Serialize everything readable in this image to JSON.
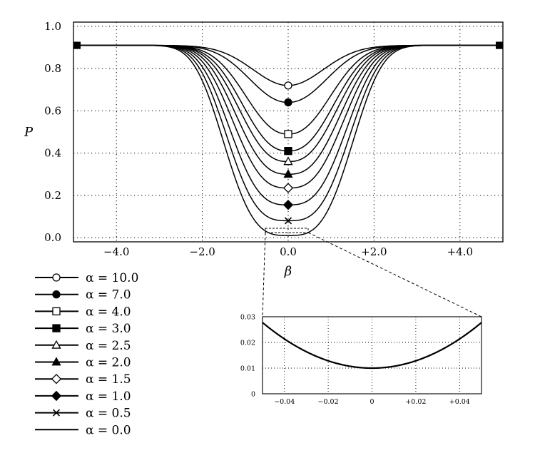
{
  "chart_data": [
    {
      "type": "line",
      "xlabel": "β",
      "ylabel": "P",
      "xlim": [
        -5.0,
        5.0
      ],
      "ylim": [
        -0.02,
        1.02
      ],
      "x_ticks": [
        -4.0,
        -2.0,
        0.0,
        2.0,
        4.0
      ],
      "x_tick_labels": [
        "−4.0",
        "−2.0",
        "0.0",
        "+2.0",
        "+4.0"
      ],
      "y_ticks": [
        0.0,
        0.2,
        0.4,
        0.6,
        0.8,
        1.0
      ],
      "y_tick_labels": [
        "0.0",
        "0.2",
        "0.4",
        "0.6",
        "0.8",
        "1.0"
      ],
      "grid": true,
      "legend_position": "bottom-left, outside the plot",
      "series": [
        {
          "name": "α = 10.0",
          "marker": "circle-open",
          "min_at_zero": 0.72
        },
        {
          "name": "α = 7.0",
          "marker": "circle-filled",
          "min_at_zero": 0.64
        },
        {
          "name": "α = 4.0",
          "marker": "square-open",
          "min_at_zero": 0.49
        },
        {
          "name": "α = 3.0",
          "marker": "square-filled",
          "min_at_zero": 0.41
        },
        {
          "name": "α = 2.5",
          "marker": "triangle-open",
          "min_at_zero": 0.36
        },
        {
          "name": "α = 2.0",
          "marker": "triangle-filled",
          "min_at_zero": 0.3
        },
        {
          "name": "α = 1.5",
          "marker": "diamond-open",
          "min_at_zero": 0.235
        },
        {
          "name": "α = 1.0",
          "marker": "diamond-filled",
          "min_at_zero": 0.155
        },
        {
          "name": "α = 0.5",
          "marker": "x-cross",
          "min_at_zero": 0.08
        },
        {
          "name": "α = 0.0",
          "marker": "none",
          "min_at_zero": 0.01
        }
      ],
      "curve_value_at_edges": 0.91
    },
    {
      "type": "line",
      "title": "",
      "xlim": [
        -0.05,
        0.05
      ],
      "ylim": [
        0,
        0.03
      ],
      "x_ticks": [
        -0.04,
        -0.02,
        0,
        0.02,
        0.04
      ],
      "x_tick_labels": [
        "−0.04",
        "−0.02",
        "0",
        "+0.02",
        "+0.04"
      ],
      "y_ticks": [
        0,
        0.01,
        0.02,
        0.03
      ],
      "y_tick_labels": [
        "0",
        "0.01",
        "0.02",
        "0.03"
      ],
      "grid": true,
      "series": [
        {
          "x": [
            -0.05,
            -0.04,
            -0.03,
            -0.02,
            -0.01,
            0,
            0.01,
            0.02,
            0.03,
            0.04,
            0.05
          ],
          "y": [
            0.0278,
            0.0219,
            0.017,
            0.0132,
            0.0108,
            0.01,
            0.0108,
            0.0132,
            0.017,
            0.0219,
            0.0278
          ]
        }
      ]
    }
  ]
}
